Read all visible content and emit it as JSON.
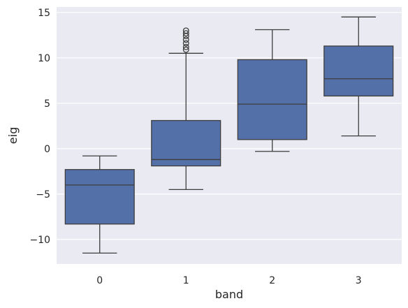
{
  "chart_data": {
    "type": "box",
    "xlabel": "band",
    "ylabel": "eig",
    "categories": [
      "0",
      "1",
      "2",
      "3"
    ],
    "ylim": [
      -12.7,
      15.6
    ],
    "yticks": [
      -10,
      -5,
      0,
      5,
      10,
      15
    ],
    "ytick_labels": [
      "−10",
      "−5",
      "0",
      "5",
      "10",
      "15"
    ],
    "grid": true,
    "box_color": "#5470a8",
    "line_color": "#3d3d3d",
    "background": "#eaeaf2",
    "boxes": [
      {
        "category": "0",
        "whisker_low": -11.5,
        "q1": -8.3,
        "median": -4.0,
        "q3": -2.3,
        "whisker_high": -0.8,
        "outliers": []
      },
      {
        "category": "1",
        "whisker_low": -4.5,
        "q1": -1.9,
        "median": -1.2,
        "q3": 3.1,
        "whisker_high": 10.5,
        "outliers": [
          10.9,
          11.2,
          11.6,
          12.0,
          12.4,
          12.7,
          13.0
        ]
      },
      {
        "category": "2",
        "whisker_low": -0.3,
        "q1": 1.0,
        "median": 4.9,
        "q3": 9.8,
        "whisker_high": 13.1,
        "outliers": []
      },
      {
        "category": "3",
        "whisker_low": 1.4,
        "q1": 5.8,
        "median": 7.7,
        "q3": 11.3,
        "whisker_high": 14.5,
        "outliers": []
      }
    ]
  }
}
